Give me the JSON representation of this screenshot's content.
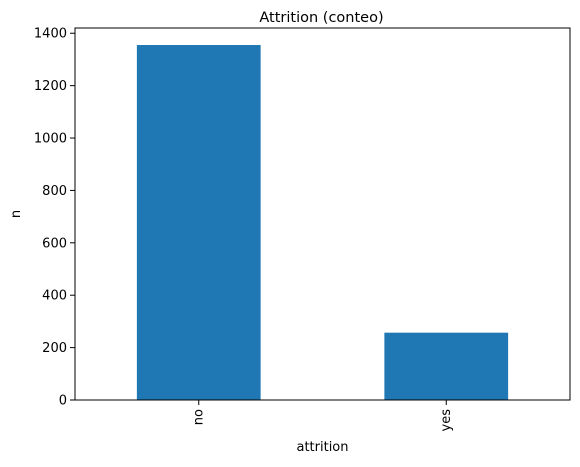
{
  "chart_data": {
    "type": "bar",
    "title": "Attrition (conteo)",
    "xlabel": "attrition",
    "ylabel": "n",
    "categories": [
      "no",
      "yes"
    ],
    "values": [
      1355,
      257
    ],
    "ylim": [
      0,
      1420
    ],
    "yticks": [
      0,
      200,
      400,
      600,
      800,
      1000,
      1200,
      1400
    ],
    "ytick_labels": [
      "0",
      "200",
      "400",
      "600",
      "800",
      "1000",
      "1200",
      "1400"
    ],
    "grid": false,
    "bar_color": "#1f77b4"
  }
}
